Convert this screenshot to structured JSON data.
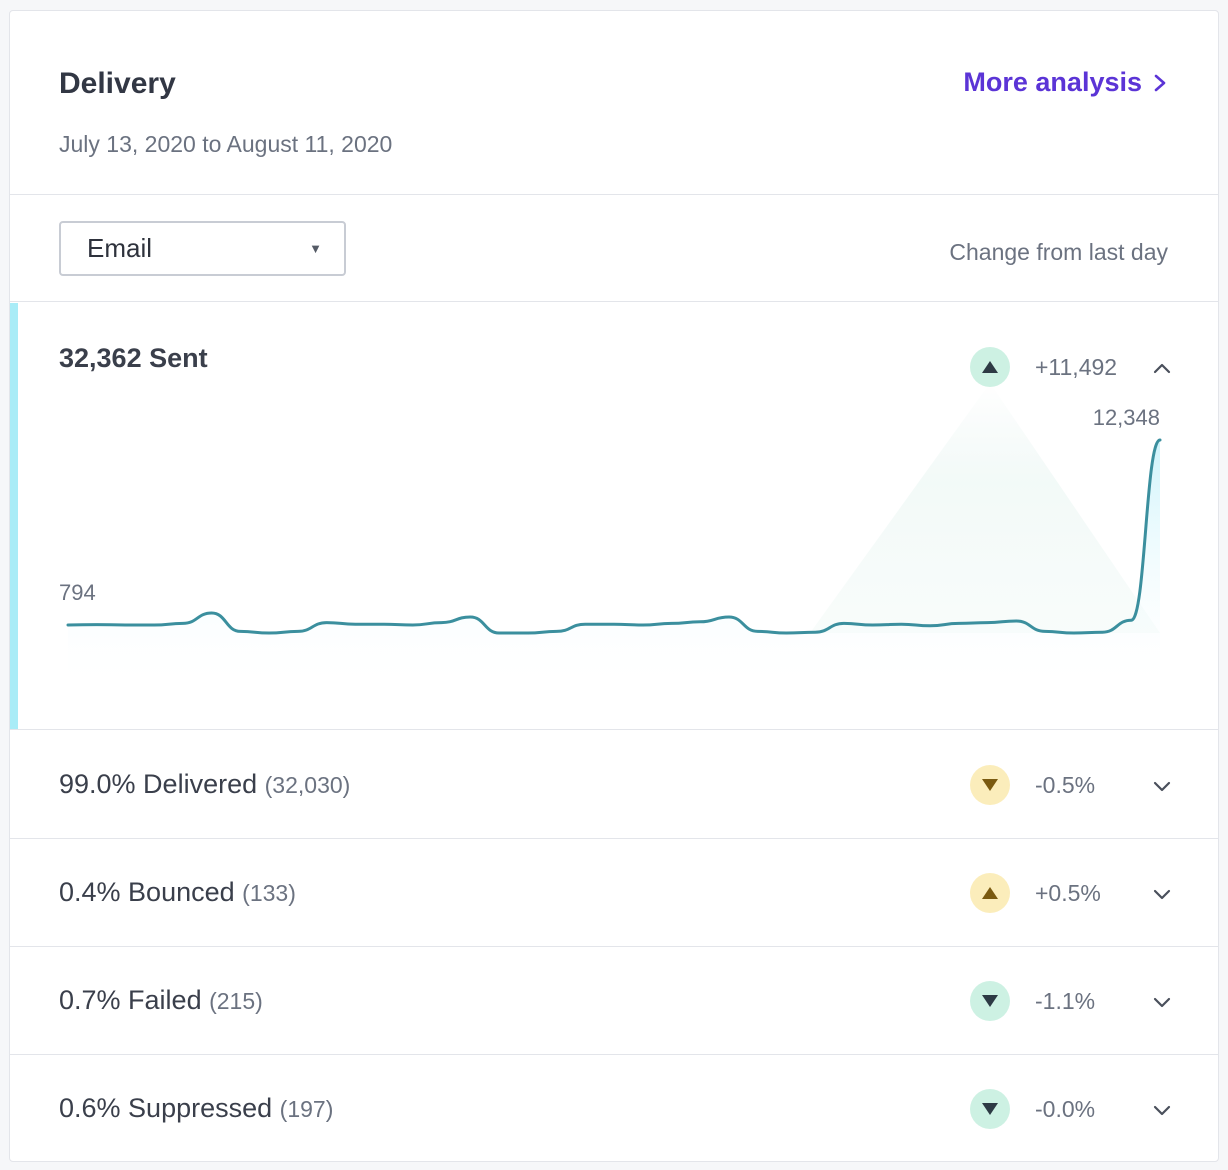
{
  "header": {
    "title": "Delivery",
    "date_range": "July 13, 2020 to August 11, 2020",
    "more_link": "More analysis"
  },
  "filter": {
    "channel": "Email",
    "change_label": "Change from last day"
  },
  "sent": {
    "label": "32,362 Sent",
    "change": "+11,492",
    "trend": "up",
    "badge_color": "#cdf1e3"
  },
  "chart_data": {
    "type": "area",
    "start_label": "794",
    "end_label": "12,348",
    "values": [
      800,
      805,
      800,
      800,
      820,
      950,
      720,
      700,
      720,
      830,
      810,
      810,
      800,
      830,
      900,
      700,
      700,
      720,
      810,
      810,
      800,
      820,
      840,
      900,
      720,
      700,
      710,
      820,
      800,
      810,
      790,
      820,
      830,
      850,
      720,
      700,
      710,
      860,
      12348
    ],
    "line_color": "#3b8f9e",
    "fill_color": "#e6f8fc"
  },
  "rows": [
    {
      "label": "99.0% Delivered",
      "count": "(32,030)",
      "change": "-0.5%",
      "trend": "down",
      "badge": "yellow"
    },
    {
      "label": "0.4% Bounced",
      "count": "(133)",
      "change": "+0.5%",
      "trend": "up",
      "badge": "yellow"
    },
    {
      "label": "0.7% Failed",
      "count": "(215)",
      "change": "-1.1%",
      "trend": "down",
      "badge": "green"
    },
    {
      "label": "0.6% Suppressed",
      "count": "(197)",
      "change": "-0.0%",
      "trend": "down",
      "badge": "green"
    }
  ],
  "colors": {
    "accent": "#5b34d6",
    "sent_accent": "#a9ecf7"
  }
}
